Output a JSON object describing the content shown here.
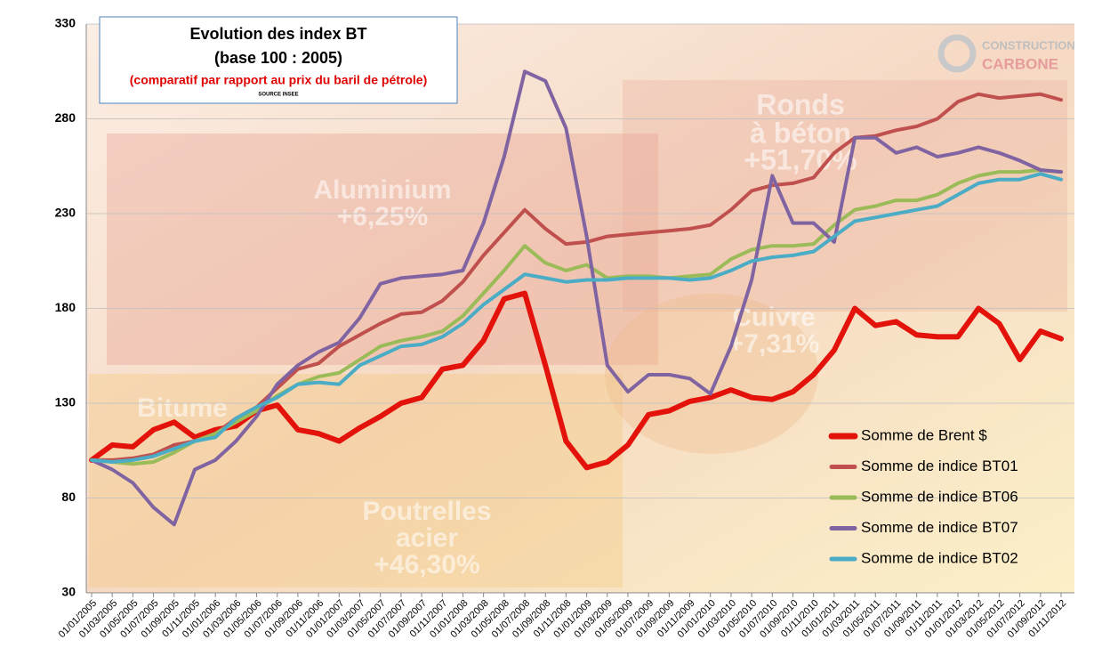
{
  "chart_data": {
    "type": "line",
    "title": "Evolution des index BT",
    "subtitle": "(base 100 : 2005)",
    "note": "(comparatif par rapport au prix du baril de pétrole)",
    "source": "SOURCE INSEE",
    "logo": [
      "CONSTRUCTION",
      "CARBONE"
    ],
    "background_annotations": [
      "Aluminium",
      "+6,25%",
      "Ronds",
      "à béton",
      "+51,70%",
      "Cuivre",
      "+7,31%",
      "Bitume",
      "Poutrelles",
      "acier",
      "+46,30%"
    ],
    "categories": [
      "01/01/2005",
      "01/03/2005",
      "01/05/2005",
      "01/07/2005",
      "01/09/2005",
      "01/11/2005",
      "01/01/2006",
      "01/03/2006",
      "01/05/2006",
      "01/07/2006",
      "01/09/2006",
      "01/11/2006",
      "01/01/2007",
      "01/03/2007",
      "01/05/2007",
      "01/07/2007",
      "01/09/2007",
      "01/11/2007",
      "01/01/2008",
      "01/03/2008",
      "01/05/2008",
      "01/07/2008",
      "01/09/2008",
      "01/11/2008",
      "01/01/2009",
      "01/03/2009",
      "01/05/2009",
      "01/07/2009",
      "01/09/2009",
      "01/11/2009",
      "01/01/2010",
      "01/03/2010",
      "01/05/2010",
      "01/07/2010",
      "01/09/2010",
      "01/11/2010",
      "01/01/2011",
      "01/03/2011",
      "01/05/2011",
      "01/07/2011",
      "01/09/2011",
      "01/11/2011",
      "01/01/2012",
      "01/03/2012",
      "01/05/2012",
      "01/07/2012",
      "01/09/2012",
      "01/11/2012"
    ],
    "series": [
      {
        "name": "Somme de Brent $",
        "color": "#e3120b",
        "width": 6,
        "values": [
          100,
          108,
          107,
          116,
          120,
          112,
          116,
          118,
          126,
          129,
          116,
          114,
          110,
          117,
          123,
          130,
          133,
          148,
          150,
          163,
          185,
          188,
          150,
          110,
          96,
          99,
          108,
          124,
          126,
          131,
          133,
          137,
          133,
          132,
          136,
          145,
          158,
          180,
          171,
          173,
          166,
          165,
          165,
          180,
          172,
          153,
          168,
          164
        ]
      },
      {
        "name": "Somme de indice BT01",
        "color": "#c0504d",
        "width": 4,
        "values": [
          100,
          100,
          101,
          103,
          108,
          110,
          114,
          122,
          128,
          138,
          148,
          151,
          160,
          166,
          172,
          177,
          178,
          184,
          194,
          208,
          220,
          232,
          222,
          214,
          215,
          218,
          219,
          220,
          221,
          222,
          224,
          232,
          242,
          245,
          246,
          249,
          262,
          270,
          271,
          274,
          276,
          280,
          289,
          293,
          291,
          292,
          293,
          290
        ]
      },
      {
        "name": "Somme de indice BT06",
        "color": "#9bbb59",
        "width": 4,
        "values": [
          100,
          99,
          98,
          99,
          104,
          110,
          114,
          120,
          126,
          134,
          140,
          144,
          146,
          153,
          160,
          163,
          165,
          168,
          176,
          188,
          200,
          213,
          204,
          200,
          203,
          196,
          197,
          197,
          196,
          197,
          198,
          206,
          211,
          213,
          213,
          214,
          224,
          232,
          234,
          237,
          237,
          240,
          246,
          250,
          252,
          252,
          253,
          252
        ]
      },
      {
        "name": "Somme de indice BT07",
        "color": "#8064a2",
        "width": 4,
        "values": [
          100,
          95,
          88,
          75,
          66,
          95,
          100,
          110,
          123,
          140,
          150,
          157,
          162,
          175,
          193,
          196,
          197,
          198,
          200,
          225,
          260,
          305,
          300,
          275,
          218,
          150,
          136,
          145,
          145,
          143,
          135,
          160,
          195,
          250,
          225,
          225,
          215,
          270,
          270,
          262,
          265,
          260,
          262,
          265,
          262,
          258,
          253,
          252
        ]
      },
      {
        "name": "Somme de indice BT02",
        "color": "#4bacc6",
        "width": 4,
        "values": [
          100,
          99,
          100,
          102,
          106,
          110,
          112,
          122,
          128,
          133,
          140,
          141,
          140,
          150,
          155,
          160,
          161,
          165,
          172,
          182,
          190,
          198,
          196,
          194,
          195,
          195,
          196,
          196,
          196,
          195,
          196,
          200,
          205,
          207,
          208,
          210,
          218,
          226,
          228,
          230,
          232,
          234,
          240,
          246,
          248,
          248,
          251,
          248
        ]
      }
    ],
    "ylim": [
      30,
      330
    ],
    "yticks": [
      30,
      80,
      130,
      180,
      230,
      280,
      330
    ],
    "grid": true,
    "legend": "lower-right"
  }
}
